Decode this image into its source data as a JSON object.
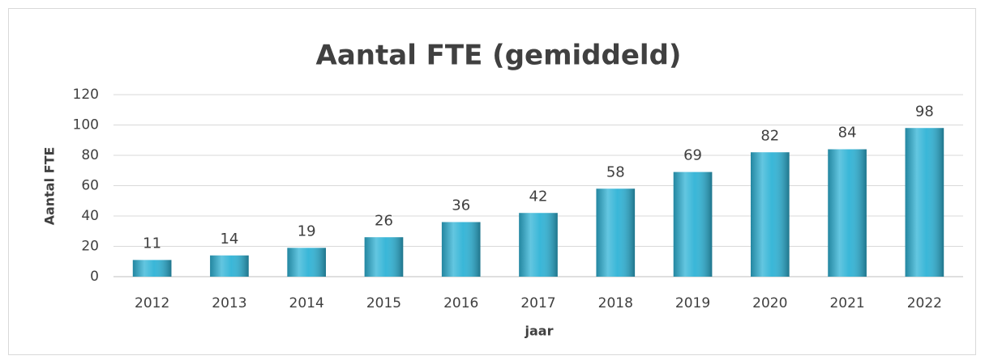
{
  "chart_data": {
    "type": "bar",
    "title": "Aantal FTE (gemiddeld)",
    "x_label": "jaar",
    "y_label": "Aantal FTE",
    "categories": [
      "2012",
      "2013",
      "2014",
      "2015",
      "2016",
      "2017",
      "2018",
      "2019",
      "2020",
      "2021",
      "2022"
    ],
    "values": [
      11,
      14,
      19,
      26,
      36,
      42,
      58,
      69,
      82,
      84,
      98
    ],
    "color": "#2fb3d6",
    "ylim": [
      0,
      120
    ],
    "yticks": [
      0,
      20,
      40,
      60,
      80,
      100,
      120
    ],
    "grid": true
  }
}
